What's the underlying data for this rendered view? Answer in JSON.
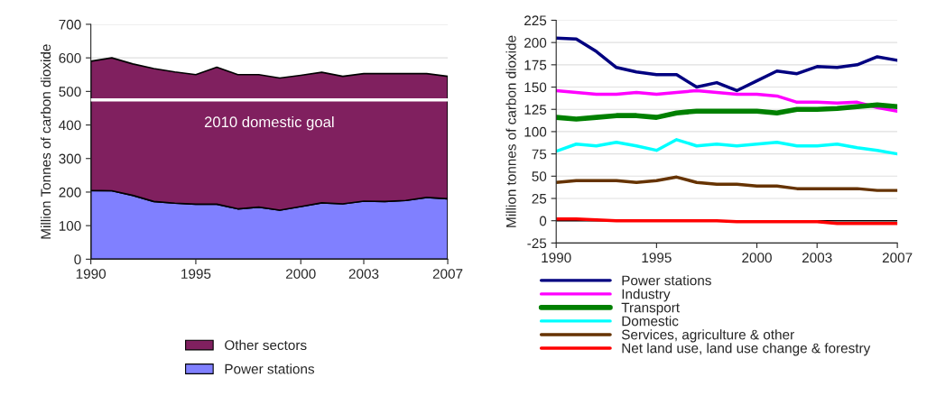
{
  "chart_data": [
    {
      "type": "area",
      "stacked": true,
      "ylabel": "Million Tonnes of carbon dioxide",
      "x": [
        1990,
        1991,
        1992,
        1993,
        1994,
        1995,
        1996,
        1997,
        1998,
        1999,
        2000,
        2001,
        2002,
        2003,
        2004,
        2005,
        2006,
        2007
      ],
      "series": [
        {
          "name": "Power stations",
          "color": "#8080ff",
          "values": [
            205,
            204,
            190,
            172,
            167,
            164,
            164,
            150,
            155,
            146,
            157,
            168,
            165,
            173,
            172,
            175,
            184,
            180
          ]
        },
        {
          "name": "Other sectors",
          "color": "#80205f",
          "values": [
            385,
            396,
            392,
            396,
            391,
            386,
            408,
            400,
            395,
            394,
            391,
            389,
            380,
            380,
            381,
            378,
            369,
            365
          ]
        }
      ],
      "ref_lines": [
        {
          "axis": "y",
          "value": 475,
          "label": "2010 domestic goal",
          "color": "#ffffff"
        }
      ],
      "xlim": [
        1990,
        2007
      ],
      "xticks": [
        1990,
        1995,
        2000,
        2003,
        2007
      ],
      "ylim": [
        0,
        700
      ],
      "yticks": [
        0,
        100,
        200,
        300,
        400,
        500,
        600,
        700
      ],
      "grid": "y",
      "legend": "bottom"
    },
    {
      "type": "line",
      "ylabel": "Million tonnes of carbon dioxide",
      "x": [
        1990,
        1991,
        1992,
        1993,
        1994,
        1995,
        1996,
        1997,
        1998,
        1999,
        2000,
        2001,
        2002,
        2003,
        2004,
        2005,
        2006,
        2007
      ],
      "series": [
        {
          "name": "Power stations",
          "color": "#000080",
          "values": [
            205,
            204,
            190,
            172,
            167,
            164,
            164,
            150,
            155,
            146,
            157,
            168,
            165,
            173,
            172,
            175,
            184,
            180
          ]
        },
        {
          "name": "Industry",
          "color": "#ff00ff",
          "values": [
            146,
            144,
            142,
            142,
            144,
            142,
            144,
            146,
            144,
            142,
            142,
            140,
            133,
            133,
            132,
            133,
            127,
            123
          ]
        },
        {
          "name": "Transport",
          "color": "#008000",
          "values": [
            116,
            114,
            116,
            118,
            118,
            116,
            121,
            123,
            123,
            123,
            123,
            121,
            125,
            125,
            126,
            128,
            130,
            128
          ]
        },
        {
          "name": "Domestic",
          "color": "#00ffff",
          "values": [
            78,
            86,
            84,
            88,
            84,
            79,
            91,
            84,
            86,
            84,
            86,
            88,
            84,
            84,
            86,
            82,
            79,
            75
          ]
        },
        {
          "name": "Services, agriculture & other",
          "color": "#663300",
          "values": [
            43,
            45,
            45,
            45,
            43,
            45,
            49,
            43,
            41,
            41,
            39,
            39,
            36,
            36,
            36,
            36,
            34,
            34
          ]
        },
        {
          "name": "Net land use, land use change & forestry",
          "color": "#ff0000",
          "values": [
            2,
            2,
            1,
            0,
            0,
            0,
            0,
            0,
            0,
            -1,
            -1,
            -1,
            -1,
            -1,
            -3,
            -3,
            -3,
            -3
          ]
        }
      ],
      "xlim": [
        1990,
        2007
      ],
      "xticks": [
        1990,
        1995,
        2000,
        2003,
        2007
      ],
      "ylim": [
        -25,
        225
      ],
      "yticks": [
        -25,
        0,
        25,
        50,
        75,
        100,
        125,
        150,
        175,
        200,
        225
      ],
      "grid": "y",
      "legend": "bottom"
    }
  ]
}
